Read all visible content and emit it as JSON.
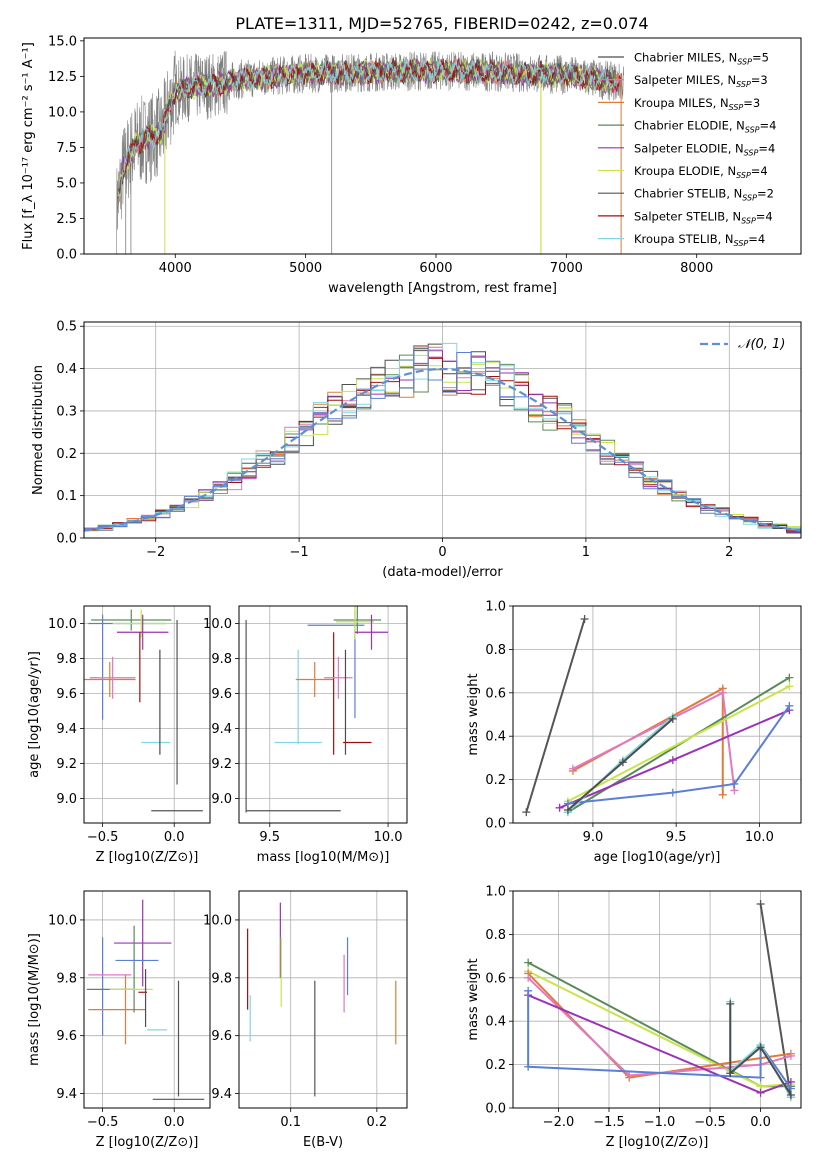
{
  "figure_title": "PLATE=1311, MJD=52765, FIBERID=0242, z=0.074",
  "colors": {
    "chab_miles": "#4d4d4d",
    "salp_miles": "#e377c2",
    "krou_miles": "#e07b39",
    "chab_elodie": "#5a8a5a",
    "salp_elodie": "#9a33b5",
    "krou_elodie": "#c8e44a",
    "chab_stelib": "#555555",
    "salp_stelib": "#a01010",
    "krou_stelib": "#7fd8e0",
    "gauss": "#5b8fd6",
    "blue": "#5b7fd6",
    "spectrum_data": "#808080"
  },
  "chart_data": [
    {
      "id": "spectrum",
      "type": "line",
      "title": "PLATE=1311, MJD=52765, FIBERID=0242, z=0.074",
      "xlabel": "wavelength [Angstrom, rest frame]",
      "ylabel": "Flux [f_λ 10⁻¹⁷ erg cm⁻² s⁻¹ A⁻¹]",
      "xlim": [
        3300,
        8800
      ],
      "ylim": [
        0,
        15.2
      ],
      "xticks": [
        4000,
        5000,
        6000,
        7000,
        8000
      ],
      "yticks": [
        0.0,
        2.5,
        5.0,
        7.5,
        10.0,
        12.5,
        15.0
      ],
      "legend_position": "right",
      "continuum": {
        "x": [
          3550,
          3600,
          3700,
          3800,
          3900,
          3950,
          4000,
          4100,
          4200,
          4300,
          4500,
          5000,
          5500,
          6000,
          6500,
          7000,
          7300,
          7500,
          8000,
          8500
        ],
        "y": [
          3.2,
          6.0,
          7.8,
          8.2,
          8.6,
          10.4,
          11.4,
          11.7,
          11.8,
          11.9,
          12.3,
          12.7,
          12.8,
          12.9,
          12.8,
          12.6,
          12.2,
          12.0,
          11.5,
          11.0
        ]
      },
      "series": [
        {
          "label": "Chabrier MILES, N",
          "sub": "SSP",
          "eq": "=5",
          "color_key": "chab_miles"
        },
        {
          "label": "Salpeter MILES, N",
          "sub": "SSP",
          "eq": "=3",
          "color_key": "salp_miles"
        },
        {
          "label": "Kroupa MILES, N",
          "sub": "SSP",
          "eq": "=3",
          "color_key": "krou_miles"
        },
        {
          "label": "Chabrier ELODIE, N",
          "sub": "SSP",
          "eq": "=4",
          "color_key": "chab_elodie"
        },
        {
          "label": "Salpeter ELODIE, N",
          "sub": "SSP",
          "eq": "=4",
          "color_key": "salp_elodie"
        },
        {
          "label": "Kroupa ELODIE, N",
          "sub": "SSP",
          "eq": "=4",
          "color_key": "krou_elodie"
        },
        {
          "label": "Chabrier STELIB, N",
          "sub": "SSP",
          "eq": "=2",
          "color_key": "chab_stelib"
        },
        {
          "label": "Salpeter STELIB, N",
          "sub": "SSP",
          "eq": "=4",
          "color_key": "salp_stelib"
        },
        {
          "label": "Kroupa STELIB, N",
          "sub": "SSP",
          "eq": "=4",
          "color_key": "krou_stelib"
        }
      ]
    },
    {
      "id": "residuals",
      "type": "bar",
      "xlabel": "(data-model)/error",
      "ylabel": "Normed distribution",
      "xlim": [
        -2.5,
        2.5
      ],
      "ylim": [
        0,
        0.51
      ],
      "xticks": [
        -2,
        -1,
        0,
        1,
        2
      ],
      "yticks": [
        0.0,
        0.1,
        0.2,
        0.3,
        0.4,
        0.5
      ],
      "grid": true,
      "bin_width": 0.1,
      "legend": "𝒩(0, 1)",
      "legend_position": "top-right",
      "gaussian": {
        "mean": 0,
        "sigma": 1
      }
    },
    {
      "id": "age_vs_Z",
      "type": "scatter",
      "xlabel": "Z [log10(Z/Z⊙)]",
      "ylabel": "age [log10(age/yr)]",
      "xlim": [
        -0.63,
        0.25
      ],
      "ylim": [
        8.86,
        10.1
      ],
      "xticks": [
        -0.5,
        0.0
      ],
      "yticks": [
        9.0,
        9.2,
        9.4,
        9.6,
        9.8,
        10.0
      ],
      "grid": true,
      "points": [
        {
          "color_key": "blue",
          "x": -0.33,
          "y": 10.0,
          "xerr": 0.27,
          "yerr": 0.0
        },
        {
          "color_key": "chab_elodie",
          "x": -0.3,
          "y": 10.02,
          "xerr": 0.28,
          "yerr": 0.06
        },
        {
          "color_key": "krou_elodie",
          "x": -0.23,
          "y": 10.0,
          "xerr": 0.2,
          "yerr": 0.08
        },
        {
          "color_key": "salp_elodie",
          "x": -0.22,
          "y": 9.95,
          "xerr": 0.18,
          "yerr": 0.1
        },
        {
          "color_key": "blue",
          "x": -0.5,
          "y": 9.75,
          "xerr": 0.0,
          "yerr": 0.3
        },
        {
          "color_key": "krou_miles",
          "x": -0.45,
          "y": 9.68,
          "xerr": 0.18,
          "yerr": 0.1
        },
        {
          "color_key": "salp_miles",
          "x": -0.43,
          "y": 9.69,
          "xerr": 0.16,
          "yerr": 0.12
        },
        {
          "color_key": "salp_stelib",
          "x": -0.24,
          "y": 9.75,
          "xerr": 0.0,
          "yerr": 0.2
        },
        {
          "color_key": "krou_stelib",
          "x": -0.13,
          "y": 9.32,
          "xerr": 0.1,
          "yerr": 0.0
        },
        {
          "color_key": "chab_miles",
          "x": -0.1,
          "y": 9.55,
          "xerr": 0.0,
          "yerr": 0.3
        },
        {
          "color_key": "chab_stelib",
          "x": 0.02,
          "y": 8.93,
          "xerr": 0.18,
          "yerr": 0.0
        },
        {
          "color_key": "chab_stelib",
          "x": 0.02,
          "y": 9.55,
          "xerr": 0.0,
          "yerr": 0.47
        }
      ]
    },
    {
      "id": "age_vs_mass",
      "type": "scatter",
      "xlabel": "mass [log10(M/M⊙)]",
      "ylabel": "",
      "xlim": [
        9.37,
        10.08
      ],
      "ylim": [
        8.86,
        10.1
      ],
      "xticks": [
        9.5,
        10.0
      ],
      "yticks": [
        9.0,
        9.2,
        9.4,
        9.6,
        9.8,
        10.0
      ],
      "grid": true,
      "points": [
        {
          "color_key": "chab_stelib",
          "x": 9.4,
          "y": 9.47,
          "xerr": 0.0,
          "yerr": 0.55
        },
        {
          "color_key": "chab_stelib",
          "x": 9.6,
          "y": 8.93,
          "xerr": 0.2,
          "yerr": 0.0
        },
        {
          "color_key": "krou_stelib",
          "x": 9.62,
          "y": 9.58,
          "xerr": 0.0,
          "yerr": 0.27
        },
        {
          "color_key": "krou_stelib",
          "x": 9.62,
          "y": 9.32,
          "xerr": 0.1,
          "yerr": 0.0
        },
        {
          "color_key": "krou_miles",
          "x": 9.69,
          "y": 9.68,
          "xerr": 0.08,
          "yerr": 0.1
        },
        {
          "color_key": "salp_stelib",
          "x": 9.77,
          "y": 9.6,
          "xerr": 0.0,
          "yerr": 0.35
        },
        {
          "color_key": "salp_miles",
          "x": 9.79,
          "y": 9.69,
          "xerr": 0.06,
          "yerr": 0.12
        },
        {
          "color_key": "blue",
          "x": 9.78,
          "y": 9.99,
          "xerr": 0.12,
          "yerr": 0.0
        },
        {
          "color_key": "blue",
          "x": 9.86,
          "y": 9.77,
          "xerr": 0.0,
          "yerr": 0.31
        },
        {
          "color_key": "chab_elodie",
          "x": 9.87,
          "y": 10.02,
          "xerr": 0.1,
          "yerr": 0.08
        },
        {
          "color_key": "krou_elodie",
          "x": 9.86,
          "y": 10.01,
          "xerr": 0.08,
          "yerr": 0.1
        },
        {
          "color_key": "salp_elodie",
          "x": 9.93,
          "y": 9.95,
          "xerr": 0.07,
          "yerr": 0.1
        },
        {
          "color_key": "chab_miles",
          "x": 9.82,
          "y": 9.55,
          "xerr": 0.0,
          "yerr": 0.3
        },
        {
          "color_key": "salp_stelib",
          "x": 9.87,
          "y": 9.32,
          "xerr": 0.06,
          "yerr": 0.0
        }
      ]
    },
    {
      "id": "massweight_vs_age",
      "type": "line",
      "xlabel": "age [log10(age/yr)]",
      "ylabel": "mass weight",
      "xlim": [
        8.52,
        10.25
      ],
      "ylim": [
        0,
        1.0
      ],
      "xticks": [
        9.0,
        9.5,
        10.0
      ],
      "yticks": [
        0.0,
        0.2,
        0.4,
        0.6,
        0.8,
        1.0
      ],
      "grid": true,
      "series": [
        {
          "color_key": "chab_stelib",
          "x": [
            8.6,
            8.95
          ],
          "y": [
            0.05,
            0.94
          ]
        },
        {
          "color_key": "krou_miles",
          "x": [
            8.88,
            9.78,
            9.78
          ],
          "y": [
            0.24,
            0.62,
            0.13
          ]
        },
        {
          "color_key": "salp_miles",
          "x": [
            8.88,
            9.78,
            9.85
          ],
          "y": [
            0.25,
            0.6,
            0.15
          ]
        },
        {
          "color_key": "chab_elodie",
          "x": [
            8.85,
            10.18
          ],
          "y": [
            0.05,
            0.67
          ]
        },
        {
          "color_key": "krou_elodie",
          "x": [
            8.85,
            10.18
          ],
          "y": [
            0.1,
            0.63
          ]
        },
        {
          "color_key": "salp_elodie",
          "x": [
            8.8,
            9.48,
            10.18
          ],
          "y": [
            0.07,
            0.29,
            0.52
          ]
        },
        {
          "color_key": "blue",
          "x": [
            8.85,
            9.48,
            9.85,
            10.18
          ],
          "y": [
            0.09,
            0.14,
            0.18,
            0.54
          ]
        },
        {
          "color_key": "krou_stelib",
          "x": [
            8.85,
            9.18,
            9.48
          ],
          "y": [
            0.05,
            0.29,
            0.49
          ]
        },
        {
          "color_key": "chab_miles",
          "x": [
            8.85,
            9.18,
            9.48
          ],
          "y": [
            0.06,
            0.28,
            0.48
          ]
        }
      ]
    },
    {
      "id": "mass_vs_Z",
      "type": "scatter",
      "xlabel": "Z [log10(Z/Z⊙)]",
      "ylabel": "mass [log10(M/M⊙)]",
      "xlim": [
        -0.63,
        0.25
      ],
      "ylim": [
        9.35,
        10.1
      ],
      "xticks": [
        -0.5,
        0.0
      ],
      "yticks": [
        9.4,
        9.6,
        9.8,
        10.0
      ],
      "grid": true,
      "points": [
        {
          "color_key": "blue",
          "x": -0.5,
          "y": 9.77,
          "xerr": 0.0,
          "yerr": 0.17
        },
        {
          "color_key": "salp_miles",
          "x": -0.45,
          "y": 9.81,
          "xerr": 0.15,
          "yerr": 0.0
        },
        {
          "color_key": "chab_elodie",
          "x": -0.45,
          "y": 9.76,
          "xerr": 0.16,
          "yerr": 0.0
        },
        {
          "color_key": "krou_miles",
          "x": -0.4,
          "y": 9.69,
          "xerr": 0.2,
          "yerr": 0.0
        },
        {
          "color_key": "krou_miles",
          "x": -0.34,
          "y": 9.69,
          "xerr": 0.0,
          "yerr": 0.12
        },
        {
          "color_key": "salp_elodie",
          "x": -0.22,
          "y": 9.92,
          "xerr": 0.2,
          "yerr": 0.0
        },
        {
          "color_key": "salp_elodie",
          "x": -0.22,
          "y": 9.92,
          "xerr": 0.0,
          "yerr": 0.15
        },
        {
          "color_key": "chab_elodie",
          "x": -0.28,
          "y": 9.83,
          "xerr": 0.0,
          "yerr": 0.15
        },
        {
          "color_key": "blue",
          "x": -0.26,
          "y": 9.86,
          "xerr": 0.15,
          "yerr": 0.0
        },
        {
          "color_key": "krou_elodie",
          "x": -0.3,
          "y": 9.76,
          "xerr": 0.15,
          "yerr": 0.0
        },
        {
          "color_key": "salp_stelib",
          "x": -0.22,
          "y": 9.75,
          "xerr": 0.03,
          "yerr": 0.0
        },
        {
          "color_key": "chab_miles",
          "x": -0.2,
          "y": 9.73,
          "xerr": 0.0,
          "yerr": 0.1
        },
        {
          "color_key": "krou_stelib",
          "x": -0.12,
          "y": 9.62,
          "xerr": 0.07,
          "yerr": 0.0
        },
        {
          "color_key": "chab_stelib",
          "x": 0.03,
          "y": 9.59,
          "xerr": 0.0,
          "yerr": 0.2
        },
        {
          "color_key": "chab_stelib",
          "x": 0.03,
          "y": 9.38,
          "xerr": 0.18,
          "yerr": 0.0
        }
      ]
    },
    {
      "id": "mass_vs_EBV",
      "type": "scatter",
      "xlabel": "E(B-V)",
      "ylabel": "",
      "xlim": [
        0.04,
        0.235
      ],
      "ylim": [
        9.35,
        10.1
      ],
      "xticks": [
        0.1,
        0.2
      ],
      "yticks": [
        9.4,
        9.6,
        9.8,
        10.0
      ],
      "grid": true,
      "points": [
        {
          "color_key": "salp_stelib",
          "x": 0.05,
          "y": 9.83,
          "xerr": 0.0,
          "yerr": 0.14
        },
        {
          "color_key": "krou_stelib",
          "x": 0.053,
          "y": 9.66,
          "xerr": 0.0,
          "yerr": 0.08
        },
        {
          "color_key": "salp_elodie",
          "x": 0.088,
          "y": 9.93,
          "xerr": 0.0,
          "yerr": 0.13
        },
        {
          "color_key": "krou_elodie",
          "x": 0.089,
          "y": 9.82,
          "xerr": 0.0,
          "yerr": 0.12
        },
        {
          "color_key": "chab_stelib",
          "x": 0.128,
          "y": 9.59,
          "xerr": 0.0,
          "yerr": 0.2
        },
        {
          "color_key": "salp_miles",
          "x": 0.162,
          "y": 9.78,
          "xerr": 0.0,
          "yerr": 0.1
        },
        {
          "color_key": "blue",
          "x": 0.166,
          "y": 9.84,
          "xerr": 0.0,
          "yerr": 0.1
        },
        {
          "color_key": "krou_miles",
          "x": 0.222,
          "y": 9.68,
          "xerr": 0.0,
          "yerr": 0.11
        }
      ]
    },
    {
      "id": "massweight_vs_Z",
      "type": "line",
      "xlabel": "Z [log10(Z/Z⊙)]",
      "ylabel": "mass weight",
      "xlim": [
        -2.45,
        0.4
      ],
      "ylim": [
        0,
        1.0
      ],
      "xticks": [
        -2.0,
        -1.5,
        -1.0,
        -0.5,
        0.0
      ],
      "yticks": [
        0.0,
        0.2,
        0.4,
        0.6,
        0.8,
        1.0
      ],
      "grid": true,
      "series": [
        {
          "color_key": "chab_stelib",
          "x": [
            0.0,
            0.3
          ],
          "y": [
            0.94,
            0.05
          ]
        },
        {
          "color_key": "chab_elodie",
          "x": [
            -2.3,
            0.0,
            0.3
          ],
          "y": [
            0.67,
            0.1,
            0.1
          ]
        },
        {
          "color_key": "krou_elodie",
          "x": [
            -2.3,
            0.0,
            0.3
          ],
          "y": [
            0.63,
            0.1,
            0.11
          ]
        },
        {
          "color_key": "krou_miles",
          "x": [
            -2.3,
            -1.3,
            0.0,
            0.3
          ],
          "y": [
            0.62,
            0.14,
            0.23,
            0.25
          ]
        },
        {
          "color_key": "salp_miles",
          "x": [
            -2.3,
            -1.3,
            0.0,
            0.3
          ],
          "y": [
            0.6,
            0.15,
            0.2,
            0.24
          ]
        },
        {
          "color_key": "salp_elodie",
          "x": [
            -2.3,
            0.0,
            0.3
          ],
          "y": [
            0.52,
            0.07,
            0.12
          ]
        },
        {
          "color_key": "blue",
          "x": [
            -2.3,
            -2.3,
            0.0,
            0.0,
            0.3
          ],
          "y": [
            0.54,
            0.19,
            0.14,
            0.29,
            0.09
          ]
        },
        {
          "color_key": "krou_stelib",
          "x": [
            -0.3,
            -0.3,
            0.0,
            0.3
          ],
          "y": [
            0.49,
            0.17,
            0.29,
            0.05
          ]
        },
        {
          "color_key": "chab_miles",
          "x": [
            -0.3,
            -0.3,
            0.0,
            0.3
          ],
          "y": [
            0.48,
            0.16,
            0.28,
            0.06
          ]
        }
      ]
    }
  ]
}
